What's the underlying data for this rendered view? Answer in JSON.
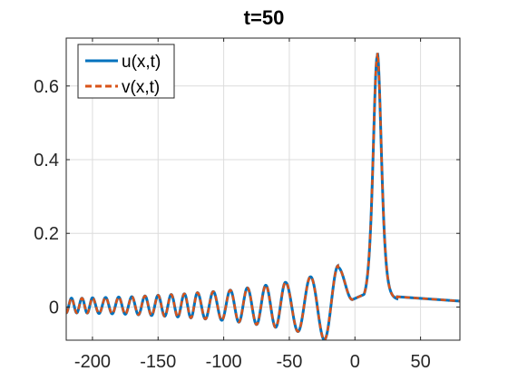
{
  "chart_data": {
    "type": "line",
    "title": "t=50",
    "xlabel": "",
    "ylabel": "",
    "xlim": [
      -220,
      80
    ],
    "ylim": [
      -0.09,
      0.73
    ],
    "xticks": [
      -200,
      -150,
      -100,
      -50,
      0,
      50
    ],
    "xtick_labels": [
      "-200",
      "-150",
      "-100",
      "-50",
      "0",
      "50"
    ],
    "yticks": [
      0,
      0.2,
      0.4,
      0.6
    ],
    "ytick_labels": [
      "0",
      "0.2",
      "0.4",
      "0.6"
    ],
    "grid": true,
    "legend_position": "top-left",
    "series": [
      {
        "name": "u(x,t)",
        "color": "#0072BD",
        "style": "solid",
        "peak": {
          "x": 17,
          "y": 0.665
        },
        "oscillation_crests": [
          {
            "x": -216,
            "y": 0.02
          },
          {
            "x": -208,
            "y": 0.02
          },
          {
            "x": -200,
            "y": 0.021
          },
          {
            "x": -190,
            "y": 0.022
          },
          {
            "x": -180,
            "y": 0.023
          },
          {
            "x": -170,
            "y": 0.024
          },
          {
            "x": -160,
            "y": 0.026
          },
          {
            "x": -150,
            "y": 0.028
          },
          {
            "x": -140,
            "y": 0.03
          },
          {
            "x": -130,
            "y": 0.032
          },
          {
            "x": -120,
            "y": 0.035
          },
          {
            "x": -108,
            "y": 0.038
          },
          {
            "x": -95,
            "y": 0.042
          },
          {
            "x": -82,
            "y": 0.048
          },
          {
            "x": -68,
            "y": 0.055
          },
          {
            "x": -53,
            "y": 0.063
          },
          {
            "x": -34,
            "y": 0.078
          },
          {
            "x": -13,
            "y": 0.108
          }
        ]
      },
      {
        "name": "v(x,t)",
        "color": "#D95319",
        "style": "dashed",
        "peak": {
          "x": 17,
          "y": 0.665
        }
      }
    ]
  }
}
